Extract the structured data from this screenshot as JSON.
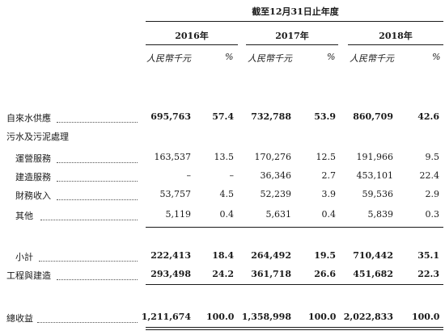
{
  "table": {
    "period_header": "截至12月31日止年度",
    "years": [
      "2016年",
      "2017年",
      "2018年"
    ],
    "unit_amount": "人民幣千元",
    "unit_pct": "%",
    "rows": [
      {
        "label": "自來水供應",
        "values": [
          "695,763",
          "57.4",
          "732,788",
          "53.9",
          "860,709",
          "42.6"
        ],
        "bold": true
      },
      {
        "label": "污水及污泥處理",
        "values": [
          "",
          "",
          "",
          "",
          "",
          ""
        ],
        "bold": false
      },
      {
        "label": "運營服務",
        "values": [
          "163,537",
          "13.5",
          "170,276",
          "12.5",
          "191,966",
          "9.5"
        ],
        "bold": false
      },
      {
        "label": "建造服務",
        "values": [
          "–",
          "–",
          "36,346",
          "2.7",
          "453,101",
          "22.4"
        ],
        "bold": false
      },
      {
        "label": "財務收入",
        "values": [
          "53,757",
          "4.5",
          "52,239",
          "3.9",
          "59,536",
          "2.9"
        ],
        "bold": false
      },
      {
        "label": "其他",
        "values": [
          "5,119",
          "0.4",
          "5,631",
          "0.4",
          "5,839",
          "0.3"
        ],
        "bold": false
      },
      {
        "label": "小計",
        "values": [
          "222,413",
          "18.4",
          "264,492",
          "19.5",
          "710,442",
          "35.1"
        ],
        "bold": true
      },
      {
        "label": "工程與建造",
        "values": [
          "293,498",
          "24.2",
          "361,718",
          "26.6",
          "451,682",
          "22.3"
        ],
        "bold": true
      },
      {
        "label": "總收益",
        "values": [
          "1,211,674",
          "100.0",
          "1,358,998",
          "100.0",
          "2,022,833",
          "100.0"
        ],
        "bold": true
      }
    ]
  }
}
